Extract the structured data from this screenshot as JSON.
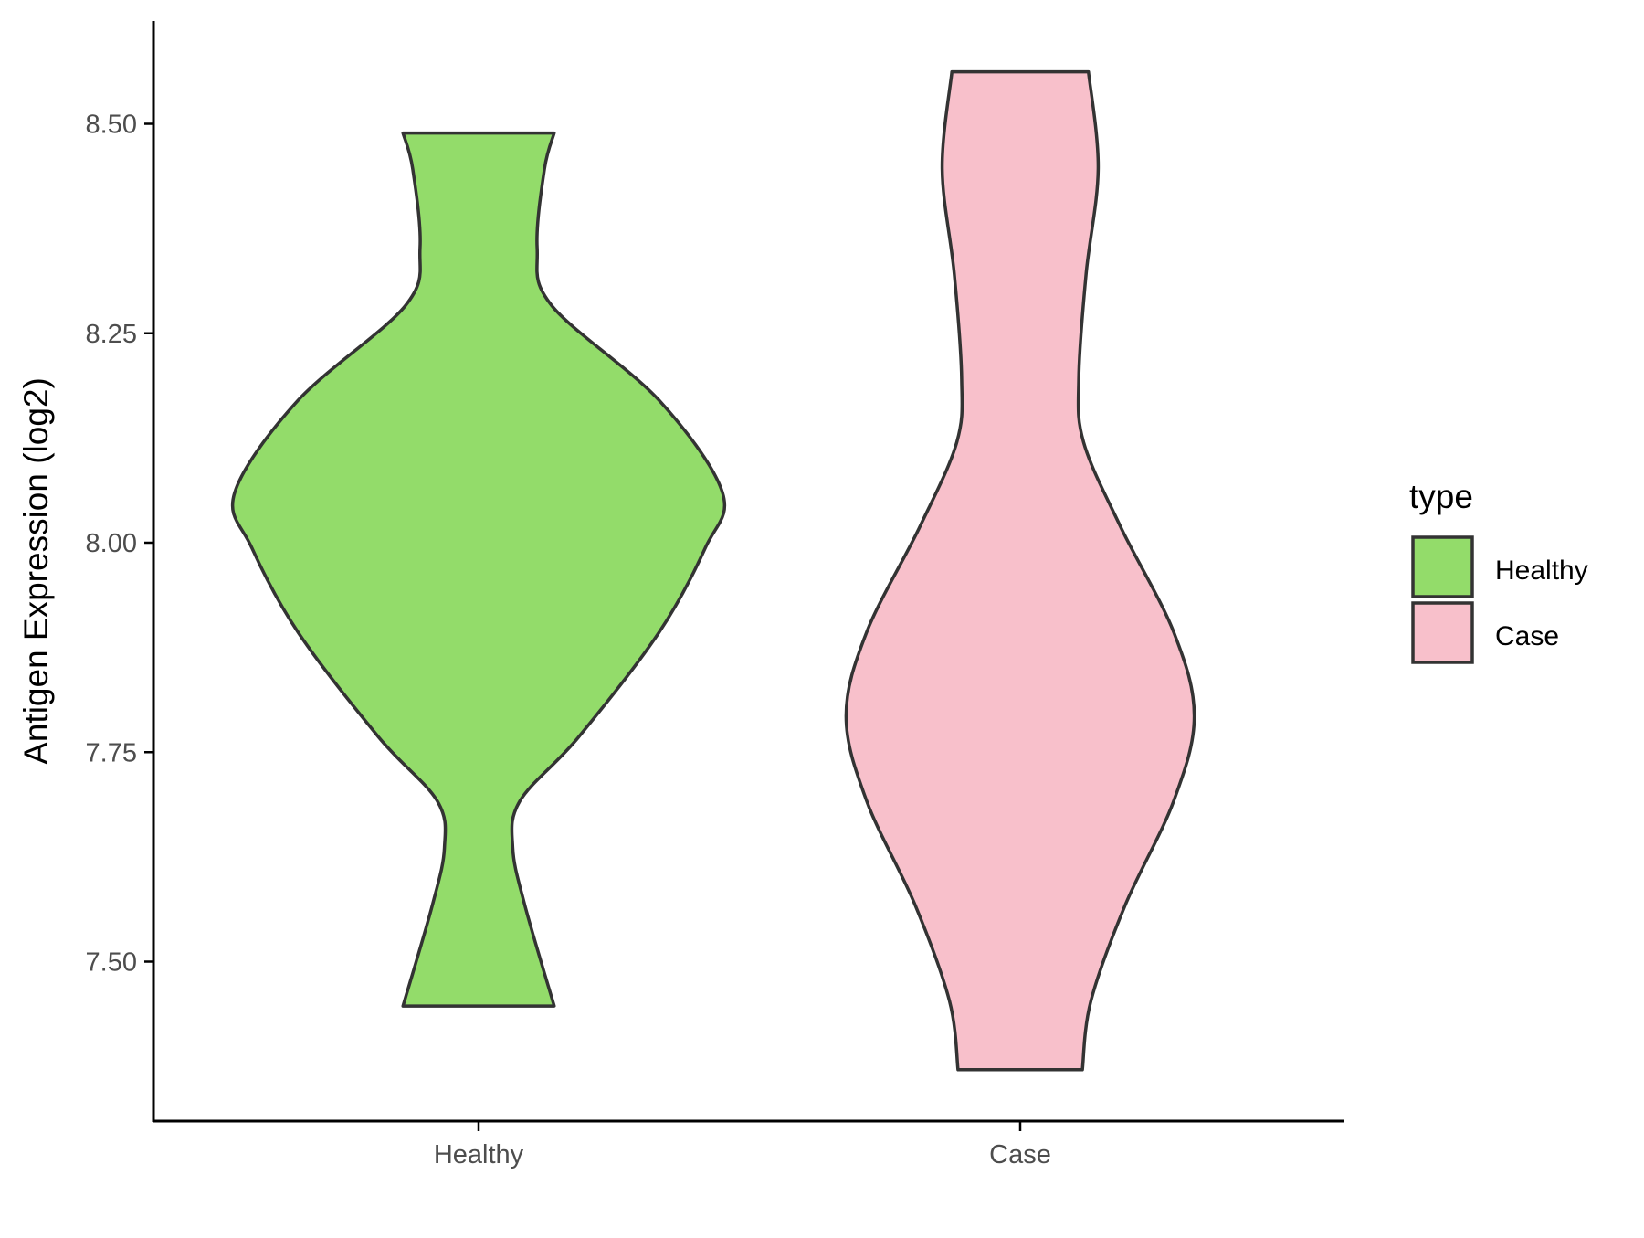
{
  "chart_data": {
    "type": "violin",
    "title": "",
    "xlabel": "",
    "ylabel": "Antigen Expression (log2)",
    "ylim": [
      7.31,
      8.625
    ],
    "yticks": [
      "7.50",
      "7.75",
      "8.00",
      "8.25",
      "8.50"
    ],
    "categories": [
      "Healthy",
      "Case"
    ],
    "grid": false,
    "legend": {
      "title": "type",
      "placement": "right",
      "entries": [
        "Healthy",
        "Case"
      ]
    },
    "series": [
      {
        "name": "Healthy",
        "color": "#93DC6A",
        "min": 7.447,
        "max": 8.489,
        "profile": [
          [
            8.489,
            0.31
          ],
          [
            8.446,
            0.27
          ],
          [
            8.352,
            0.24
          ],
          [
            8.283,
            0.3
          ],
          [
            8.17,
            0.74
          ],
          [
            8.06,
            1.0
          ],
          [
            7.994,
            0.93
          ],
          [
            7.893,
            0.74
          ],
          [
            7.768,
            0.41
          ],
          [
            7.692,
            0.17
          ],
          [
            7.636,
            0.14
          ],
          [
            7.567,
            0.19
          ],
          [
            7.447,
            0.31
          ]
        ]
      },
      {
        "name": "Case",
        "color": "#F8C0CB",
        "min": 7.371,
        "max": 8.562,
        "profile": [
          [
            8.562,
            0.28
          ],
          [
            8.446,
            0.32
          ],
          [
            8.32,
            0.27
          ],
          [
            8.195,
            0.24
          ],
          [
            8.12,
            0.26
          ],
          [
            8.02,
            0.41
          ],
          [
            7.893,
            0.63
          ],
          [
            7.793,
            0.714
          ],
          [
            7.692,
            0.63
          ],
          [
            7.567,
            0.43
          ],
          [
            7.453,
            0.29
          ],
          [
            7.371,
            0.255
          ]
        ]
      }
    ],
    "outline_color": "#333333"
  }
}
